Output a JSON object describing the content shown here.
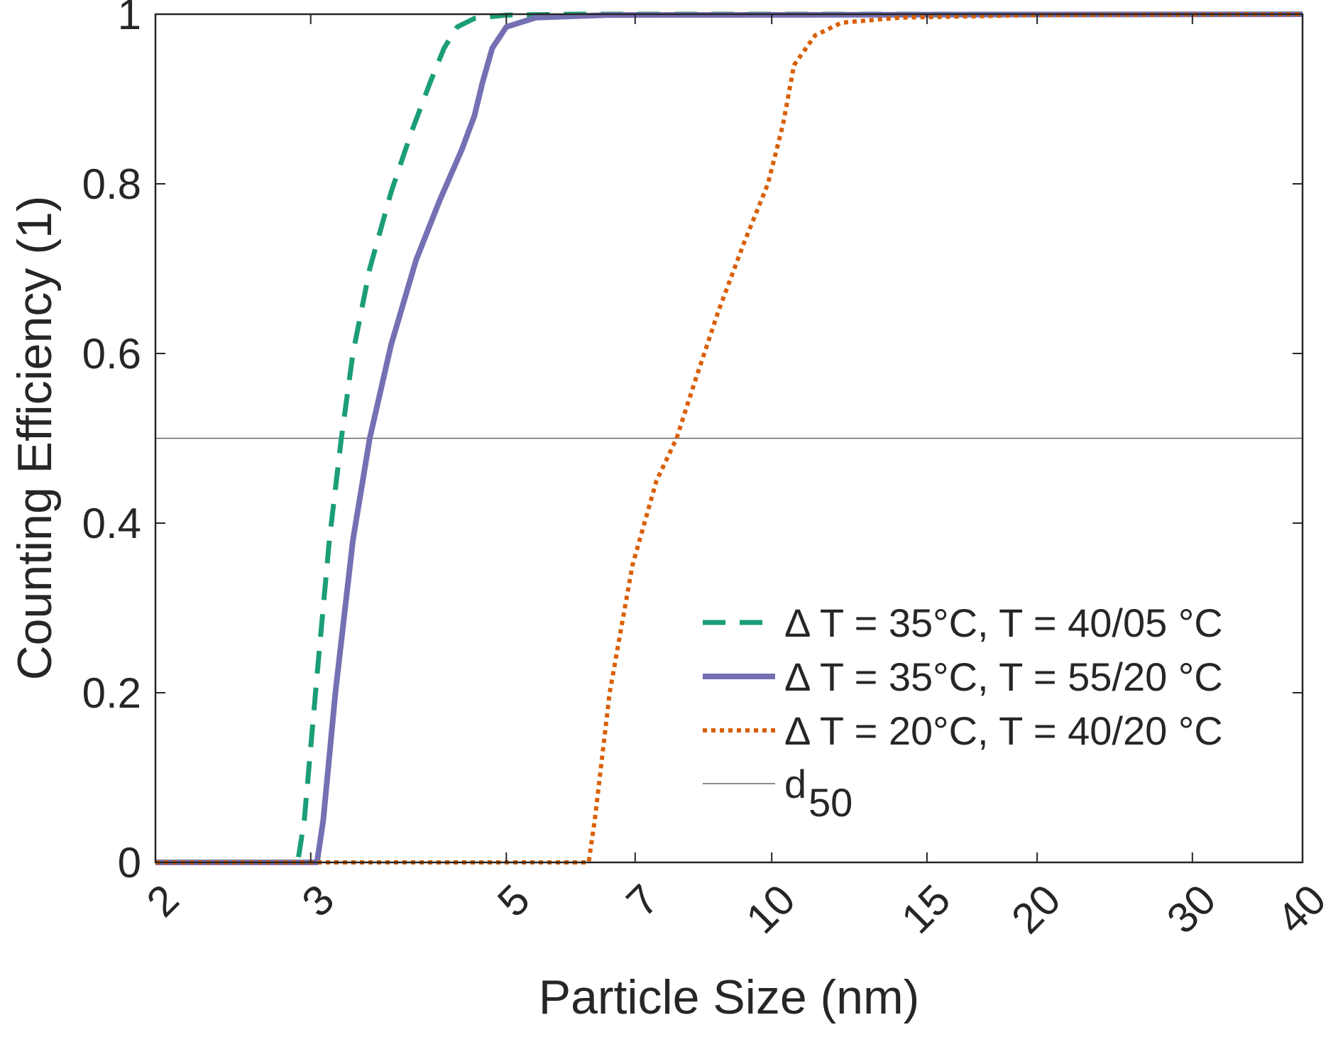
{
  "chart_data": {
    "type": "line",
    "xlabel": "Particle Size (nm)",
    "ylabel": "Counting Efficiency (1)",
    "x_scale": "log",
    "xlim": [
      2,
      40
    ],
    "ylim": [
      0,
      1
    ],
    "x_ticks": [
      2,
      3,
      5,
      7,
      10,
      15,
      20,
      30,
      40
    ],
    "x_tick_labels": [
      "2",
      "3",
      "5",
      "7",
      "10",
      "15",
      "20",
      "30",
      "40"
    ],
    "y_ticks": [
      0,
      0.2,
      0.4,
      0.6,
      0.8,
      1
    ],
    "y_tick_labels": [
      "0",
      "0.2",
      "0.4",
      "0.6",
      "0.8",
      "1"
    ],
    "grid": false,
    "legend_position": "bottom-right",
    "series": [
      {
        "name": "Δ T = 35°C, T = 40/05 °C",
        "color": "#1b9e77",
        "style": "dashed",
        "points": [
          [
            2,
            0
          ],
          [
            2.9,
            0
          ],
          [
            2.95,
            0.05
          ],
          [
            3.05,
            0.22
          ],
          [
            3.15,
            0.38
          ],
          [
            3.25,
            0.5
          ],
          [
            3.35,
            0.6
          ],
          [
            3.5,
            0.7
          ],
          [
            3.7,
            0.79
          ],
          [
            3.9,
            0.86
          ],
          [
            4.1,
            0.92
          ],
          [
            4.25,
            0.96
          ],
          [
            4.4,
            0.985
          ],
          [
            4.6,
            0.995
          ],
          [
            5,
            0.999
          ],
          [
            6,
            1
          ],
          [
            40,
            1
          ]
        ]
      },
      {
        "name": "Δ T = 35°C, T = 55/20 °C",
        "color": "#7570b3",
        "style": "solid",
        "points": [
          [
            2,
            0
          ],
          [
            3.05,
            0
          ],
          [
            3.1,
            0.05
          ],
          [
            3.2,
            0.2
          ],
          [
            3.35,
            0.38
          ],
          [
            3.5,
            0.5
          ],
          [
            3.7,
            0.61
          ],
          [
            3.95,
            0.71
          ],
          [
            4.2,
            0.78
          ],
          [
            4.45,
            0.84
          ],
          [
            4.6,
            0.88
          ],
          [
            4.7,
            0.92
          ],
          [
            4.82,
            0.96
          ],
          [
            5,
            0.985
          ],
          [
            5.4,
            0.996
          ],
          [
            6.5,
            0.999
          ],
          [
            40,
            1
          ]
        ]
      },
      {
        "name": "Δ T = 20°C, T = 40/20 °C",
        "color": "#d95f02",
        "style": "dotted",
        "points": [
          [
            2,
            0
          ],
          [
            6.2,
            0
          ],
          [
            6.3,
            0.05
          ],
          [
            6.55,
            0.2
          ],
          [
            6.95,
            0.35
          ],
          [
            7.4,
            0.45
          ],
          [
            7.8,
            0.5
          ],
          [
            8.2,
            0.57
          ],
          [
            8.7,
            0.65
          ],
          [
            9.3,
            0.73
          ],
          [
            9.9,
            0.8
          ],
          [
            10.3,
            0.87
          ],
          [
            10.6,
            0.94
          ],
          [
            11.2,
            0.975
          ],
          [
            12,
            0.99
          ],
          [
            14,
            0.996
          ],
          [
            20,
            0.999
          ],
          [
            40,
            1
          ]
        ]
      }
    ],
    "reference_line": {
      "label": "d",
      "label_subscript": "50",
      "y": 0.5,
      "color": "#666666"
    }
  }
}
